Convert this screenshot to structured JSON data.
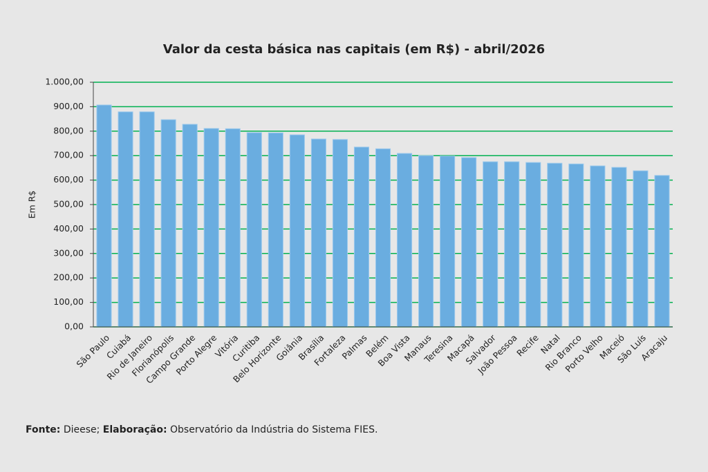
{
  "chart_data": {
    "type": "bar",
    "title": "Valor da cesta básica nas capitais (em R$) - abril/2026",
    "y_label": "Em R$",
    "categories": [
      "São Paulo",
      "Cuiabá",
      "Rio de Janeiro",
      "Florianópolis",
      "Campo Grande",
      "Porto Alegre",
      "Vitória",
      "Curitiba",
      "Belo Horizonte",
      "Goiânia",
      "Brasília",
      "Fortaleza",
      "Palmas",
      "Belém",
      "Boa Vista",
      "Manaus",
      "Teresina",
      "Macapá",
      "Salvador",
      "João Pessoa",
      "Recife",
      "Natal",
      "Rio Branco",
      "Porto Velho",
      "Maceió",
      "São Luís",
      "Aracaju"
    ],
    "values": [
      907,
      879,
      879,
      847,
      828,
      811,
      810,
      794,
      793,
      785,
      768,
      766,
      735,
      728,
      709,
      700,
      698,
      692,
      675,
      675,
      672,
      669,
      666,
      658,
      652,
      638,
      619
    ],
    "color": "#6aade0",
    "grid_color": "#00b050",
    "grid": true,
    "ylim": [
      0,
      1000
    ],
    "yticks": [
      {
        "value": 0,
        "label": "0,00"
      },
      {
        "value": 100,
        "label": "100,00"
      },
      {
        "value": 200,
        "label": "200,00"
      },
      {
        "value": 300,
        "label": "300,00"
      },
      {
        "value": 400,
        "label": "400,00"
      },
      {
        "value": 500,
        "label": "500,00"
      },
      {
        "value": 600,
        "label": "600,00"
      },
      {
        "value": 700,
        "label": "700,00"
      },
      {
        "value": 800,
        "label": "800,00"
      },
      {
        "value": 900,
        "label": "900,00"
      },
      {
        "value": 1000,
        "label": "1.000,00"
      }
    ]
  },
  "footer": {
    "source_label": "Fonte:",
    "source": " Dieese; ",
    "credit_label": "Elaboração:",
    "credit": " Observatório da Indústria do Sistema FIES."
  }
}
